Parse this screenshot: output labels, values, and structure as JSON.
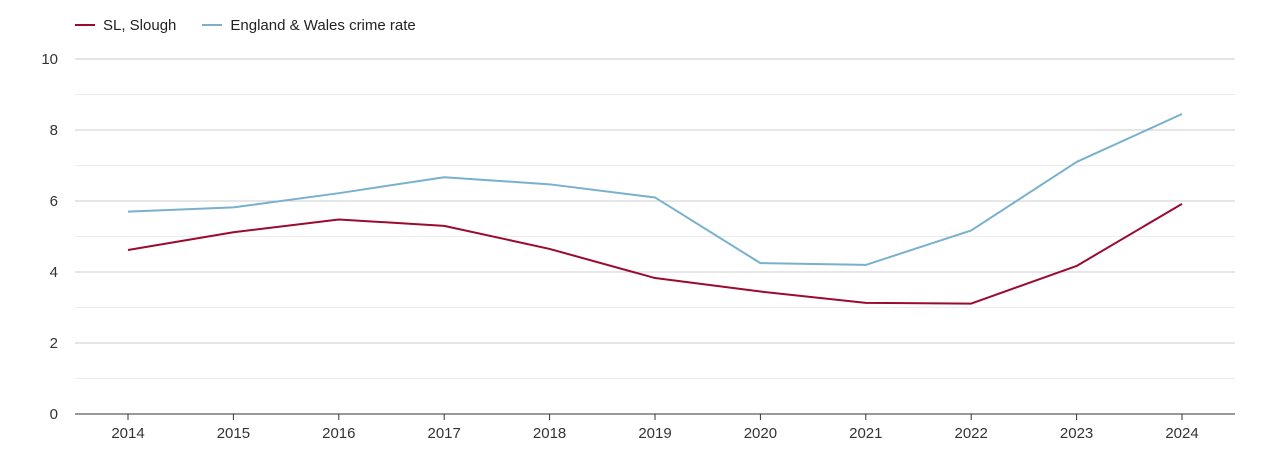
{
  "chart_data": {
    "type": "line",
    "title": "",
    "xlabel": "",
    "ylabel": "",
    "x": [
      "2014",
      "2015",
      "2016",
      "2017",
      "2018",
      "2019",
      "2020",
      "2021",
      "2022",
      "2023",
      "2024"
    ],
    "ylim": [
      0,
      10
    ],
    "yticks": [
      "0",
      "2",
      "4",
      "6",
      "8",
      "10"
    ],
    "grid": true,
    "legend_position": "top-left",
    "series": [
      {
        "name": "SL, Slough",
        "color": "#9b0a30",
        "values": [
          4.62,
          5.12,
          5.48,
          5.3,
          4.65,
          3.83,
          3.45,
          3.13,
          3.11,
          4.17,
          5.92
        ]
      },
      {
        "name": "England & Wales crime rate",
        "color": "#78b0cd",
        "values": [
          5.7,
          5.82,
          6.22,
          6.67,
          6.47,
          6.1,
          4.25,
          4.2,
          5.17,
          7.1,
          8.45
        ]
      }
    ]
  }
}
